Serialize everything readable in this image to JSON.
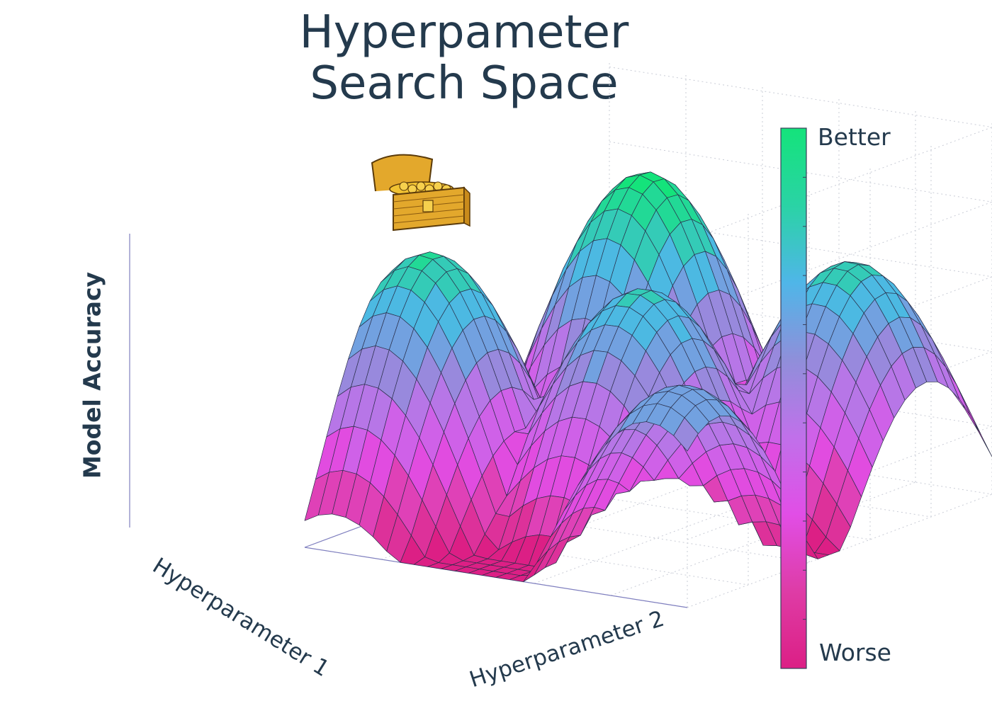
{
  "title": {
    "line1": "Hyperpameter",
    "line2": "Search Space"
  },
  "axes": {
    "z_label": "Model Accuracy",
    "x_label": "Hyperparameter 1",
    "y_label": "Hyperparameter 2"
  },
  "colorbar": {
    "top_label": "Better",
    "bottom_label": "Worse",
    "colors": [
      "#dc1f85",
      "#de3ca6",
      "#e14ee6",
      "#c070ea",
      "#8f8fda",
      "#4fb6e8",
      "#2ad3a5",
      "#14e37b"
    ]
  },
  "surface": {
    "peaks": 5,
    "highlight_icon": "treasure-chest-icon"
  }
}
